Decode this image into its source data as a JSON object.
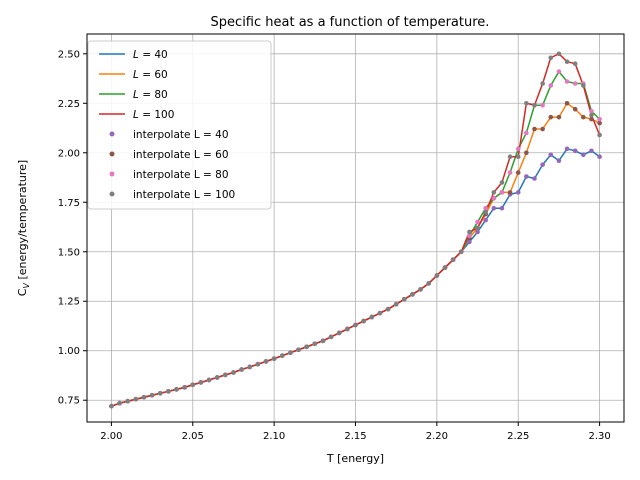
{
  "chart_data": {
    "type": "line",
    "title": "Specific heat as a function of temperature.",
    "xlabel": "T [energy]",
    "ylabel": "C_V [energy/temperature]",
    "xlim": [
      1.985,
      2.315
    ],
    "ylim": [
      0.64,
      2.6
    ],
    "xticks": [
      "2.00",
      "2.05",
      "2.10",
      "2.15",
      "2.20",
      "2.25",
      "2.30"
    ],
    "yticks": [
      "0.75",
      "1.00",
      "1.25",
      "1.50",
      "1.75",
      "2.00",
      "2.25",
      "2.50"
    ],
    "grid": true,
    "legend_position": "top-left",
    "x": [
      2.0,
      2.005,
      2.01,
      2.015,
      2.02,
      2.025,
      2.03,
      2.035,
      2.04,
      2.045,
      2.05,
      2.055,
      2.06,
      2.065,
      2.07,
      2.075,
      2.08,
      2.085,
      2.09,
      2.095,
      2.1,
      2.105,
      2.11,
      2.115,
      2.12,
      2.125,
      2.13,
      2.135,
      2.14,
      2.145,
      2.15,
      2.155,
      2.16,
      2.165,
      2.17,
      2.175,
      2.18,
      2.185,
      2.19,
      2.195,
      2.2,
      2.205,
      2.21,
      2.215,
      2.22,
      2.225,
      2.23,
      2.235,
      2.24,
      2.245,
      2.25,
      2.255,
      2.26,
      2.265,
      2.27,
      2.275,
      2.28,
      2.285,
      2.29,
      2.295,
      2.3
    ],
    "series": [
      {
        "name": "L = 40",
        "color": "#1f77b4",
        "kind": "line",
        "values": [
          0.72,
          0.735,
          0.745,
          0.755,
          0.765,
          0.775,
          0.785,
          0.795,
          0.805,
          0.815,
          0.828,
          0.84,
          0.852,
          0.865,
          0.878,
          0.89,
          0.905,
          0.918,
          0.932,
          0.946,
          0.96,
          0.975,
          0.99,
          1.005,
          1.02,
          1.035,
          1.05,
          1.07,
          1.09,
          1.11,
          1.13,
          1.15,
          1.17,
          1.19,
          1.21,
          1.235,
          1.26,
          1.285,
          1.31,
          1.34,
          1.38,
          1.42,
          1.46,
          1.5,
          1.55,
          1.6,
          1.66,
          1.72,
          1.72,
          1.79,
          1.8,
          1.88,
          1.87,
          1.94,
          1.99,
          1.96,
          2.02,
          2.01,
          1.99,
          2.01,
          1.98
        ]
      },
      {
        "name": "L = 60",
        "color": "#ff7f0e",
        "kind": "line",
        "values": [
          0.72,
          0.735,
          0.745,
          0.755,
          0.765,
          0.775,
          0.785,
          0.795,
          0.805,
          0.815,
          0.828,
          0.84,
          0.852,
          0.865,
          0.878,
          0.89,
          0.905,
          0.918,
          0.932,
          0.946,
          0.96,
          0.975,
          0.99,
          1.005,
          1.02,
          1.035,
          1.05,
          1.07,
          1.09,
          1.11,
          1.13,
          1.15,
          1.17,
          1.19,
          1.21,
          1.235,
          1.26,
          1.285,
          1.31,
          1.34,
          1.38,
          1.42,
          1.46,
          1.5,
          1.57,
          1.62,
          1.69,
          1.77,
          1.8,
          1.8,
          1.9,
          2.0,
          2.12,
          2.12,
          2.18,
          2.18,
          2.25,
          2.22,
          2.18,
          2.17,
          2.15
        ]
      },
      {
        "name": "L = 80",
        "color": "#2ca02c",
        "kind": "line",
        "values": [
          0.72,
          0.735,
          0.745,
          0.755,
          0.765,
          0.775,
          0.785,
          0.795,
          0.805,
          0.815,
          0.828,
          0.84,
          0.852,
          0.865,
          0.878,
          0.89,
          0.905,
          0.918,
          0.932,
          0.946,
          0.96,
          0.975,
          0.99,
          1.005,
          1.02,
          1.035,
          1.05,
          1.07,
          1.09,
          1.11,
          1.13,
          1.15,
          1.17,
          1.19,
          1.21,
          1.235,
          1.26,
          1.285,
          1.31,
          1.34,
          1.38,
          1.42,
          1.46,
          1.5,
          1.58,
          1.65,
          1.72,
          1.77,
          1.8,
          1.9,
          2.02,
          2.1,
          2.24,
          2.24,
          2.34,
          2.41,
          2.36,
          2.35,
          2.35,
          2.21,
          2.17
        ]
      },
      {
        "name": "L = 100",
        "color": "#d62728",
        "kind": "line",
        "values": [
          0.72,
          0.735,
          0.745,
          0.755,
          0.765,
          0.775,
          0.785,
          0.795,
          0.805,
          0.815,
          0.828,
          0.84,
          0.852,
          0.865,
          0.878,
          0.89,
          0.905,
          0.918,
          0.932,
          0.946,
          0.96,
          0.975,
          0.99,
          1.005,
          1.02,
          1.035,
          1.05,
          1.07,
          1.09,
          1.11,
          1.13,
          1.15,
          1.17,
          1.19,
          1.21,
          1.235,
          1.26,
          1.285,
          1.31,
          1.34,
          1.38,
          1.42,
          1.46,
          1.5,
          1.6,
          1.62,
          1.7,
          1.8,
          1.85,
          1.98,
          1.98,
          2.25,
          2.24,
          2.35,
          2.48,
          2.5,
          2.46,
          2.45,
          2.34,
          2.19,
          2.09
        ]
      },
      {
        "name": "interpolate L = 40",
        "color": "#9467bd",
        "kind": "points",
        "ref": 0
      },
      {
        "name": "interpolate L = 60",
        "color": "#8c564b",
        "kind": "points",
        "ref": 1
      },
      {
        "name": "interpolate L = 80",
        "color": "#e377c2",
        "kind": "points",
        "ref": 2
      },
      {
        "name": "interpolate L = 100",
        "color": "#7f7f7f",
        "kind": "points",
        "ref": 3
      }
    ]
  }
}
